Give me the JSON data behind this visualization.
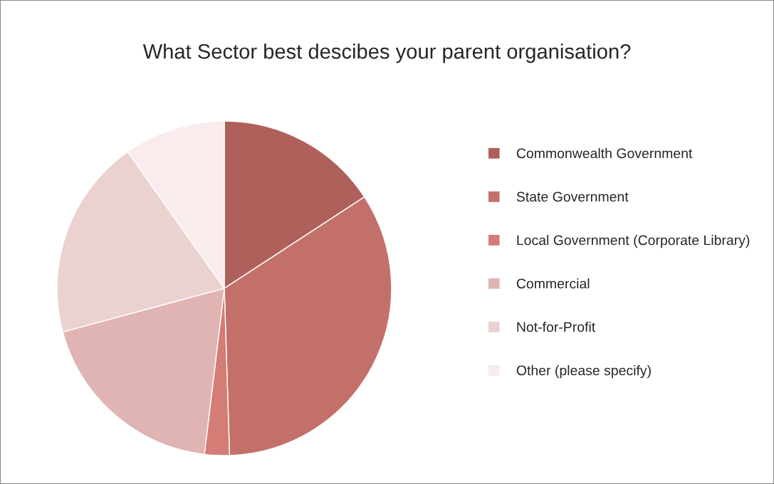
{
  "chart_data": {
    "type": "pie",
    "title": "What Sector best descibes your parent organisation?",
    "categories": [
      "Commonwealth Government",
      "State Government",
      "Local Government (Corporate Library)",
      "Commercial",
      "Not-for-Profit",
      "Other (please specify)"
    ],
    "values": [
      15.8,
      33.7,
      2.4,
      18.9,
      19.4,
      9.8
    ],
    "colors": [
      "#b0605a",
      "#c4706a",
      "#d47c76",
      "#e0b4b2",
      "#ebd1d0",
      "#f9ecec"
    ],
    "legend": "right"
  }
}
